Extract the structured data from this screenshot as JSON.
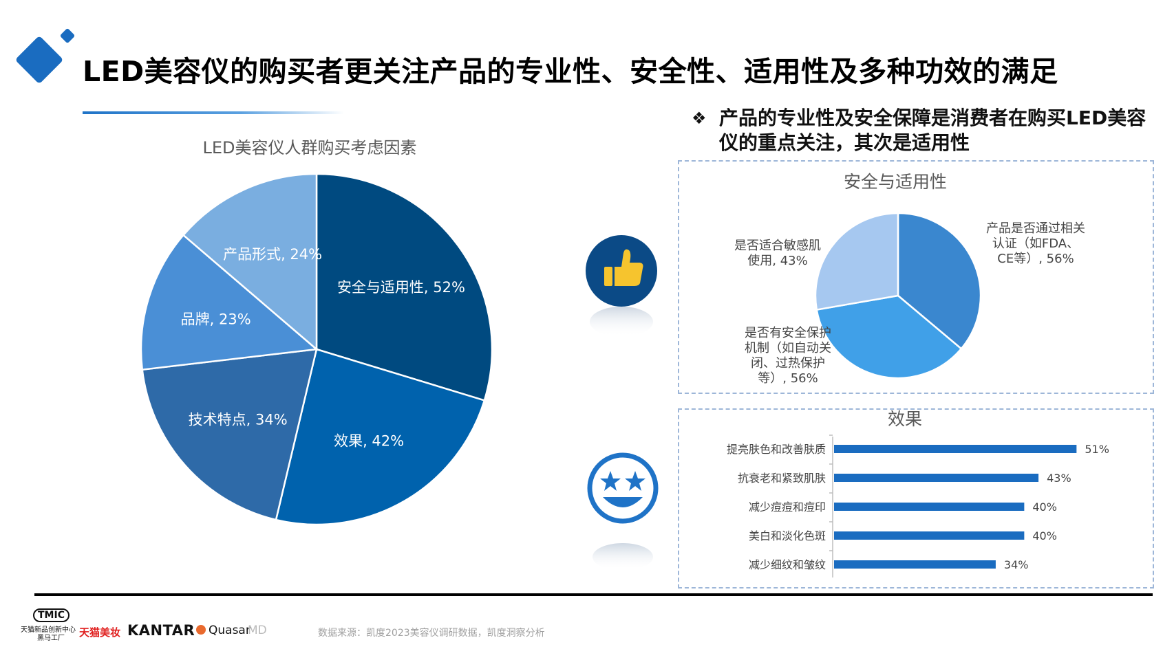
{
  "page": {
    "title": "LED美容仪的购买者更关注产品的专业性、安全性、适用性及多种功效的满足",
    "bullet_mark": "❖",
    "bullet_text": "产品的专业性及安全保障是消费者在购买LED美容仪的重点关注，其次是适用性",
    "source": "数据来源：凯度2023美容仪调研数据，凯度洞察分析"
  },
  "footer": {
    "tmic_logo": "TMIC",
    "tmic_line1": "天猫新品创新中心",
    "tmic_line2": "黑马工厂",
    "tmall_beauty": "天猫美妆",
    "kantar": "KANTAR",
    "quasar": "Quasar",
    "quasar_suffix": "MD"
  },
  "colors": {
    "pie_main": [
      "#004a80",
      "#0062ad",
      "#2e6aa8",
      "#4a8fd6",
      "#7aaee0"
    ],
    "pie_small": [
      "#3a87cf",
      "#40a0e8",
      "#a6c8f0"
    ],
    "bar": "#1a6cc0",
    "icon_circle": "#0b4a86",
    "icon_thumb": "#f6c42e",
    "icon_star_ring": "#1f73c7"
  },
  "icons": {
    "thumb": "thumbs-up-icon",
    "star_face": "star-eyes-smiley-icon",
    "logo": "blue-diamonds-logo-icon"
  },
  "chart_data": [
    {
      "type": "pie",
      "title": "LED美容仪人群购买考虑因素",
      "slices": [
        {
          "label": "安全与适用性",
          "value": 52,
          "display": "安全与适用性, 52%"
        },
        {
          "label": "效果",
          "value": 42,
          "display": "效果, 42%"
        },
        {
          "label": "技术特点",
          "value": 34,
          "display": "技术特点, 34%"
        },
        {
          "label": "品牌",
          "value": 23,
          "display": "品牌, 23%"
        },
        {
          "label": "产品形式",
          "value": 24,
          "display": "产品形式, 24%"
        }
      ]
    },
    {
      "type": "pie",
      "title": "安全与适用性",
      "slices": [
        {
          "label": "产品是否通过相关认证（如FDA、CE等）",
          "value": 56,
          "display_lines": [
            "产品是否通过相关",
            "认证（如FDA、",
            "CE等）, 56%"
          ]
        },
        {
          "label": "是否有安全保护机制（如自动关闭、过热保护等）",
          "value": 56,
          "display_lines": [
            "是否有安全保护",
            "机制（如自动关",
            "闭、过热保护",
            "等）, 56%"
          ]
        },
        {
          "label": "是否适合敏感肌使用",
          "value": 43,
          "display_lines": [
            "是否适合敏感肌",
            "使用, 43%"
          ]
        }
      ]
    },
    {
      "type": "bar",
      "orientation": "horizontal",
      "title": "效果",
      "categories": [
        "提亮肤色和改善肤质",
        "抗衰老和紧致肌肤",
        "减少痘痘和痘印",
        "美白和淡化色斑",
        "减少细纹和皱纹"
      ],
      "values": [
        51,
        43,
        40,
        40,
        34
      ],
      "labels": [
        "51%",
        "43%",
        "40%",
        "40%",
        "34%"
      ],
      "xlim": [
        0,
        55
      ]
    }
  ]
}
